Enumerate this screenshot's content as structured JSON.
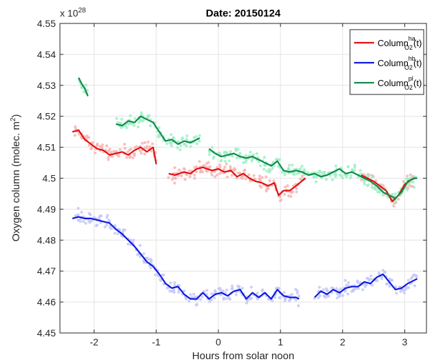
{
  "chart_data": {
    "type": "scatter",
    "title": "Date: 20150124",
    "xlabel": "Hours from solar noon",
    "ylabel_main": "Oxygen column (molec. m",
    "ylabel_sup": "2",
    "ylabel_close": ")",
    "exponent_prefix": "x 10",
    "exponent_sup": "28",
    "xlim": [
      -2.55,
      3.35
    ],
    "ylim": [
      4.45,
      4.55
    ],
    "xticks": [
      "-2",
      "-1",
      "0",
      "1",
      "2",
      "3"
    ],
    "xtick_values": [
      -2,
      -1,
      0,
      1,
      2,
      3
    ],
    "yticks": [
      "4.45",
      "4.46",
      "4.47",
      "4.48",
      "4.49",
      "4.5",
      "4.51",
      "4.52",
      "4.53",
      "4.54",
      "4.55"
    ],
    "ytick_values": [
      4.45,
      4.46,
      4.47,
      4.48,
      4.49,
      4.5,
      4.51,
      4.52,
      4.53,
      4.54,
      4.55
    ],
    "grid": true,
    "legend_position": "top-right",
    "series": [
      {
        "name": "Column_O2^ha(t)",
        "legend_main": "Column",
        "legend_sup": "ha",
        "legend_sub": "O2",
        "legend_tail": "(t)",
        "color": "#e01010",
        "scatter_color": "#f8b4b4",
        "segments": [
          [
            [
              -2.35,
              4.515
            ],
            [
              -2.25,
              4.5155
            ],
            [
              -2.15,
              4.5125
            ],
            [
              -2.05,
              4.511
            ],
            [
              -1.95,
              4.5095
            ],
            [
              -1.85,
              4.509
            ],
            [
              -1.75,
              4.5075
            ],
            [
              -1.65,
              4.508
            ],
            [
              -1.55,
              4.5085
            ],
            [
              -1.45,
              4.5075
            ],
            [
              -1.35,
              4.509
            ],
            [
              -1.25,
              4.51
            ],
            [
              -1.15,
              4.5085
            ],
            [
              -1.05,
              4.51
            ],
            [
              -1.0,
              4.5045
            ]
          ],
          [
            [
              -0.8,
              4.5015
            ],
            [
              -0.7,
              4.501
            ],
            [
              -0.55,
              4.502
            ],
            [
              -0.45,
              4.5015
            ],
            [
              -0.35,
              4.503
            ],
            [
              -0.25,
              4.5035
            ],
            [
              -0.1,
              4.5025
            ],
            [
              0.0,
              4.503
            ],
            [
              0.1,
              4.502
            ],
            [
              0.2,
              4.5025
            ],
            [
              0.3,
              4.5005
            ],
            [
              0.4,
              4.5015
            ],
            [
              0.5,
              4.5
            ],
            [
              0.6,
              4.499
            ],
            [
              0.7,
              4.4985
            ],
            [
              0.8,
              4.4975
            ],
            [
              0.9,
              4.4985
            ],
            [
              0.97,
              4.4945
            ],
            [
              1.05,
              4.496
            ],
            [
              1.15,
              4.496
            ],
            [
              1.25,
              4.4975
            ],
            [
              1.4,
              4.5
            ]
          ],
          [
            [
              2.3,
              4.501
            ],
            [
              2.4,
              4.5
            ],
            [
              2.5,
              4.499
            ],
            [
              2.6,
              4.4975
            ],
            [
              2.7,
              4.496
            ],
            [
              2.8,
              4.4925
            ],
            [
              2.9,
              4.4945
            ],
            [
              3.0,
              4.498
            ],
            [
              3.1,
              4.4995
            ],
            [
              3.17,
              4.5
            ]
          ]
        ]
      },
      {
        "name": "Column_O2^hb(t)",
        "legend_main": "Column",
        "legend_sup": "hb",
        "legend_sub": "O2",
        "legend_tail": "(t)",
        "color": "#0c18e0",
        "scatter_color": "#c4c8f6",
        "segments": [
          [
            [
              -2.35,
              4.487
            ],
            [
              -2.25,
              4.4875
            ],
            [
              -2.15,
              4.487
            ],
            [
              -2.05,
              4.487
            ],
            [
              -1.95,
              4.4865
            ],
            [
              -1.85,
              4.486
            ],
            [
              -1.75,
              4.4855
            ],
            [
              -1.65,
              4.4835
            ],
            [
              -1.55,
              4.482
            ],
            [
              -1.45,
              4.48
            ],
            [
              -1.35,
              4.478
            ],
            [
              -1.25,
              4.4755
            ],
            [
              -1.15,
              4.473
            ],
            [
              -1.05,
              4.4715
            ],
            [
              -0.95,
              4.469
            ],
            [
              -0.85,
              4.466
            ],
            [
              -0.75,
              4.4645
            ],
            [
              -0.65,
              4.465
            ],
            [
              -0.55,
              4.4625
            ],
            [
              -0.45,
              4.461
            ],
            [
              -0.35,
              4.461
            ],
            [
              -0.25,
              4.463
            ],
            [
              -0.15,
              4.461
            ],
            [
              -0.05,
              4.4625
            ],
            [
              0.05,
              4.463
            ],
            [
              0.15,
              4.462
            ],
            [
              0.25,
              4.4635
            ],
            [
              0.35,
              4.464
            ],
            [
              0.45,
              4.461
            ],
            [
              0.55,
              4.463
            ],
            [
              0.65,
              4.4615
            ],
            [
              0.75,
              4.463
            ],
            [
              0.85,
              4.461
            ],
            [
              0.95,
              4.464
            ],
            [
              1.05,
              4.462
            ],
            [
              1.15,
              4.4615
            ],
            [
              1.25,
              4.4615
            ],
            [
              1.3,
              4.461
            ]
          ],
          [
            [
              1.55,
              4.4615
            ],
            [
              1.65,
              4.4635
            ],
            [
              1.75,
              4.4625
            ],
            [
              1.85,
              4.464
            ],
            [
              1.95,
              4.463
            ],
            [
              2.05,
              4.4645
            ],
            [
              2.15,
              4.465
            ],
            [
              2.25,
              4.465
            ],
            [
              2.35,
              4.4665
            ],
            [
              2.45,
              4.466
            ],
            [
              2.55,
              4.468
            ],
            [
              2.65,
              4.469
            ],
            [
              2.75,
              4.4665
            ],
            [
              2.85,
              4.464
            ],
            [
              2.95,
              4.4645
            ],
            [
              3.05,
              4.466
            ],
            [
              3.15,
              4.467
            ],
            [
              3.2,
              4.4675
            ]
          ]
        ]
      },
      {
        "name": "Column_O2^pl(t)",
        "legend_main": "Column",
        "legend_sup": "pl",
        "legend_sub": "O2",
        "legend_tail": "(t)",
        "color": "#118a4a",
        "scatter_color": "#9ef0c6",
        "segments": [
          [
            [
              -2.25,
              4.5325
            ],
            [
              -2.2,
              4.5305
            ],
            [
              -2.15,
              4.529
            ],
            [
              -2.1,
              4.5265
            ]
          ],
          [
            [
              -1.65,
              4.5175
            ],
            [
              -1.55,
              4.517
            ],
            [
              -1.45,
              4.5185
            ],
            [
              -1.35,
              4.518
            ],
            [
              -1.25,
              4.52
            ],
            [
              -1.15,
              4.519
            ],
            [
              -1.05,
              4.518
            ],
            [
              -0.95,
              4.515
            ],
            [
              -0.85,
              4.512
            ],
            [
              -0.75,
              4.5125
            ],
            [
              -0.65,
              4.511
            ],
            [
              -0.55,
              4.512
            ],
            [
              -0.45,
              4.5115
            ],
            [
              -0.35,
              4.5125
            ],
            [
              -0.3,
              4.513
            ]
          ],
          [
            [
              -0.15,
              4.5095
            ],
            [
              -0.05,
              4.508
            ],
            [
              0.05,
              4.507
            ],
            [
              0.15,
              4.5075
            ],
            [
              0.25,
              4.508
            ],
            [
              0.35,
              4.507
            ],
            [
              0.45,
              4.5065
            ],
            [
              0.55,
              4.507
            ],
            [
              0.65,
              4.506
            ],
            [
              0.75,
              4.505
            ],
            [
              0.85,
              4.504
            ],
            [
              0.95,
              4.5055
            ],
            [
              1.05,
              4.5025
            ],
            [
              1.15,
              4.502
            ],
            [
              1.25,
              4.5025
            ],
            [
              1.35,
              4.502
            ],
            [
              1.45,
              4.501
            ],
            [
              1.55,
              4.5015
            ],
            [
              1.65,
              4.5005
            ],
            [
              1.75,
              4.501
            ],
            [
              1.85,
              4.502
            ],
            [
              1.95,
              4.503
            ],
            [
              2.05,
              4.5015
            ],
            [
              2.15,
              4.502
            ],
            [
              2.25,
              4.501
            ],
            [
              2.35,
              4.5
            ],
            [
              2.45,
              4.499
            ],
            [
              2.55,
              4.4975
            ],
            [
              2.65,
              4.4955
            ],
            [
              2.75,
              4.4945
            ],
            [
              2.85,
              4.4935
            ],
            [
              2.95,
              4.4955
            ],
            [
              3.05,
              4.499
            ],
            [
              3.15,
              4.5
            ],
            [
              3.2,
              4.5
            ]
          ]
        ]
      }
    ]
  }
}
